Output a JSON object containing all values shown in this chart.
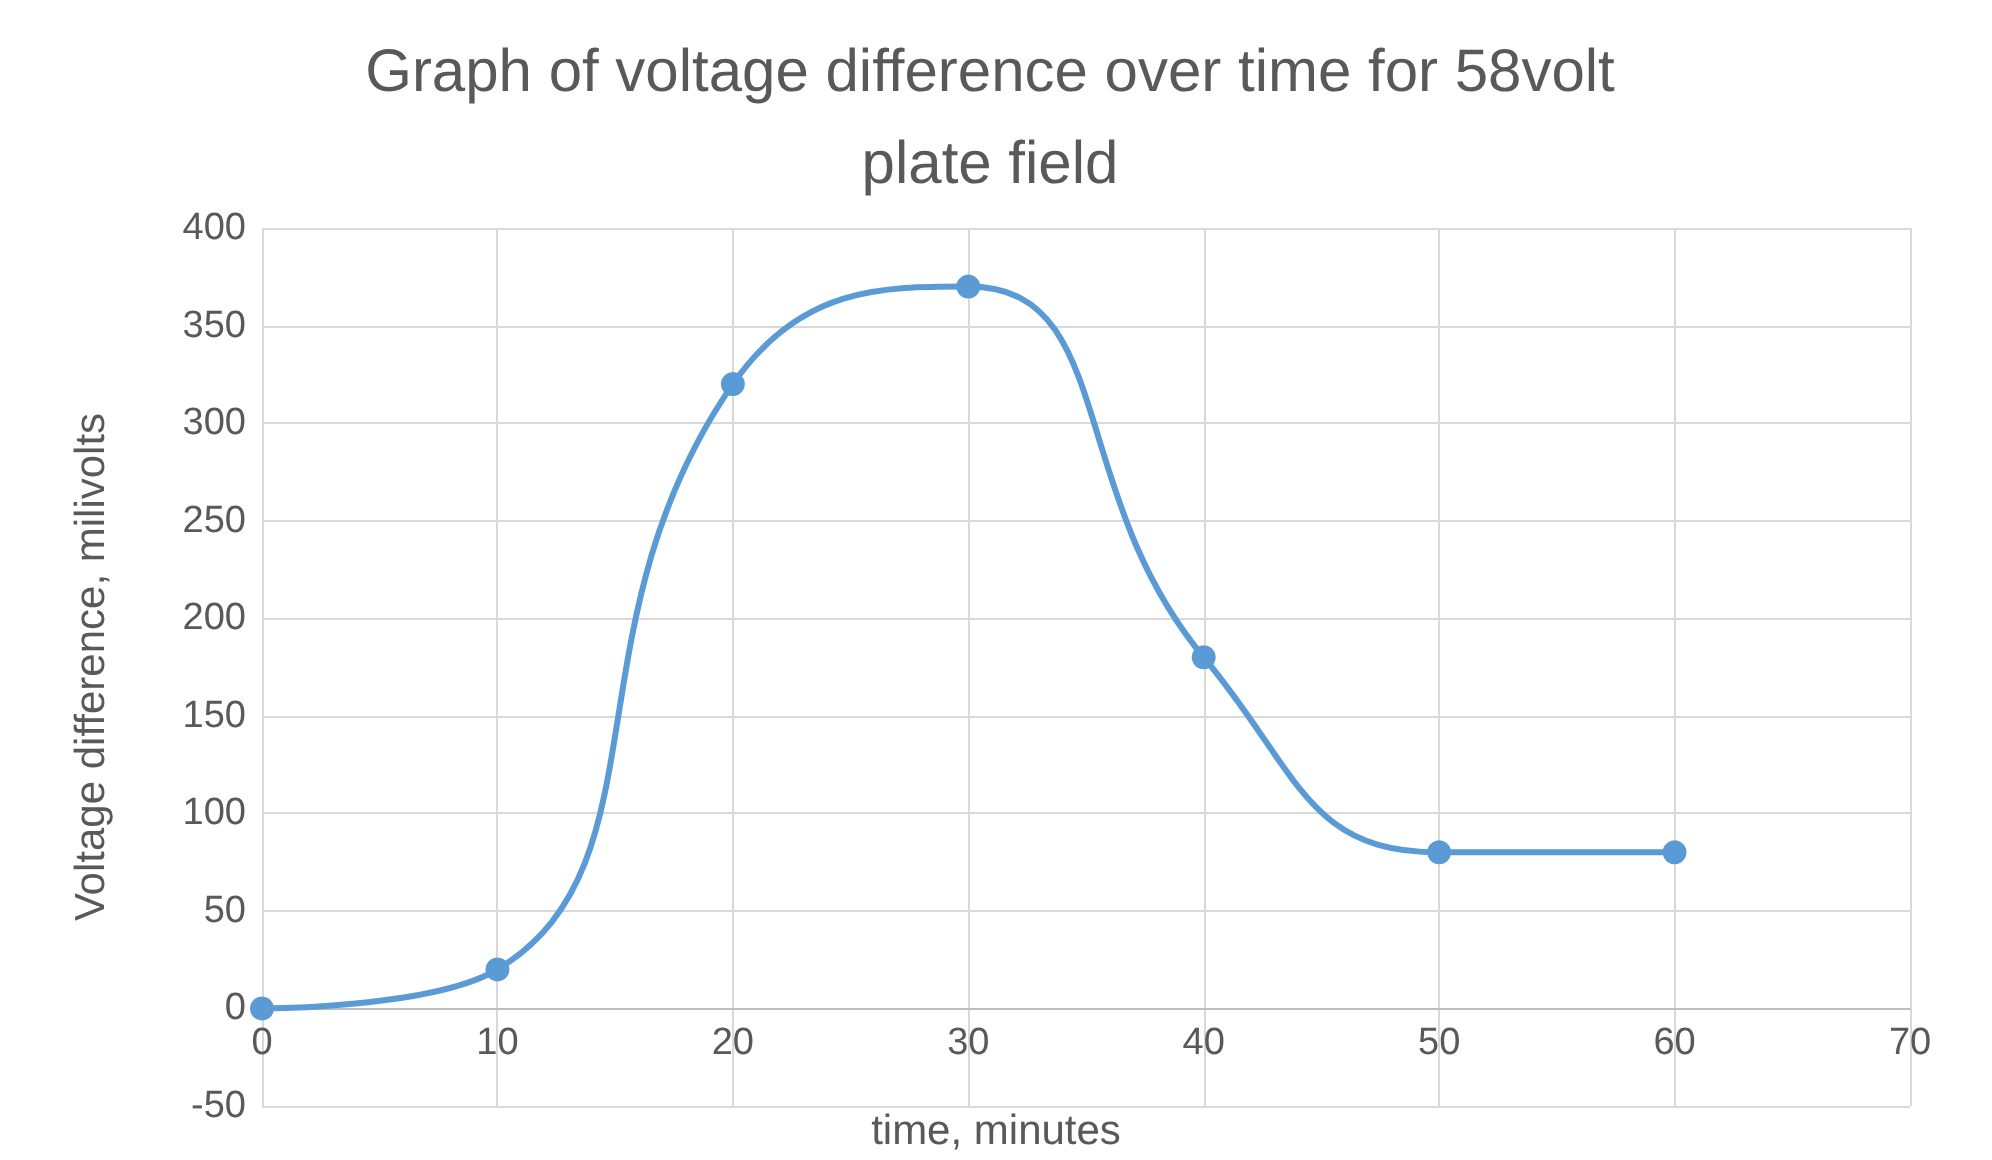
{
  "chart_data": {
    "type": "line",
    "title": "Graph of voltage difference over time for 58volt\nplate field",
    "xlabel": "time, minutes",
    "ylabel": "Voltage difference, milivolts",
    "x": [
      0,
      10,
      20,
      30,
      40,
      50,
      60
    ],
    "series": [
      {
        "color": "#5b9bd5",
        "values": [
          0,
          20,
          320,
          370,
          180,
          80,
          80
        ]
      }
    ],
    "xlim": [
      0,
      70
    ],
    "xticks": [
      0,
      10,
      20,
      30,
      40,
      50,
      60,
      70
    ],
    "ylim": [
      -50,
      400
    ],
    "yticks": [
      -50,
      0,
      50,
      100,
      150,
      200,
      250,
      300,
      350,
      400
    ],
    "grid": true,
    "marker": "circle",
    "line_style": "solid"
  }
}
